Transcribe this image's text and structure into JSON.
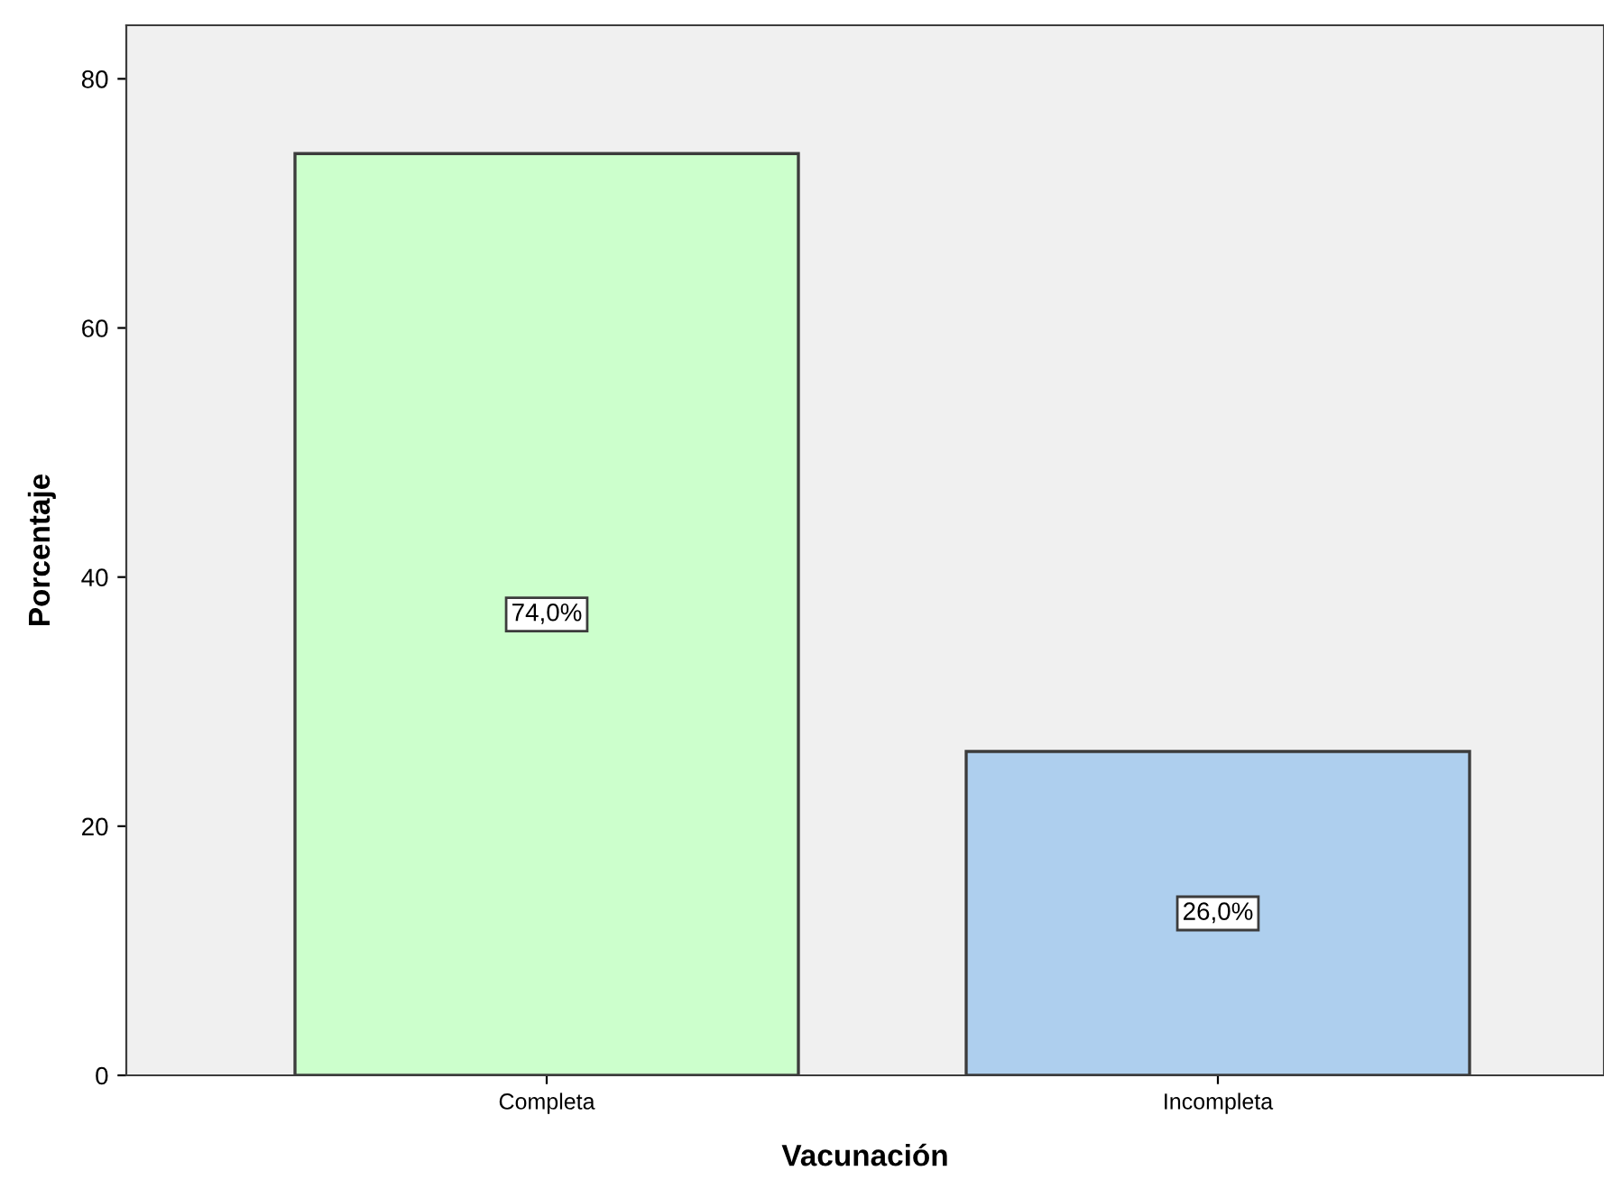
{
  "chart_data": {
    "type": "bar",
    "xlabel": "Vacunación",
    "ylabel": "Porcentaje",
    "categories": [
      "Completa",
      "Incompleta"
    ],
    "values": [
      74.0,
      26.0
    ],
    "colors": [
      "#ccffcc",
      "#aecfee"
    ],
    "value_labels": [
      "74,0%",
      "26,0%"
    ],
    "ylim": [
      0,
      84.3
    ],
    "yticks": [
      0,
      20,
      40,
      60,
      80
    ],
    "grid": false,
    "legend": false
  }
}
